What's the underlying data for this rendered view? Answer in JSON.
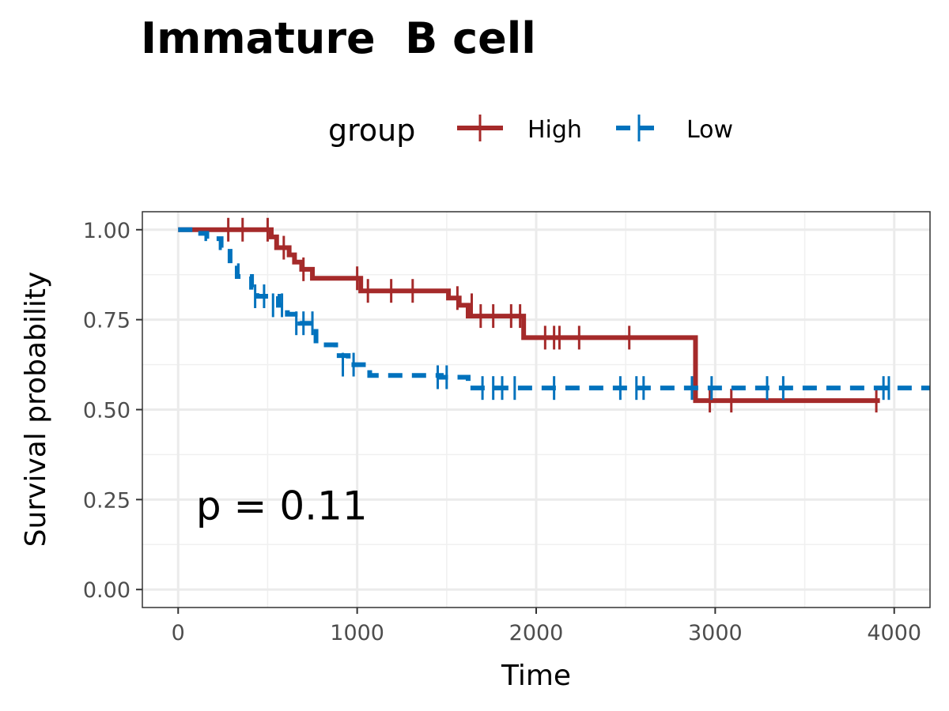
{
  "chart_data": {
    "type": "line",
    "subtype": "kaplan-meier",
    "title": "Immature  B cell",
    "legend": {
      "title": "group",
      "position": "top",
      "entries": [
        "High",
        "Low"
      ]
    },
    "xlabel": "Time",
    "ylabel": "Survival probability",
    "xlim": [
      -200,
      4200
    ],
    "ylim": [
      -0.05,
      1.05
    ],
    "x_ticks": [
      0,
      1000,
      2000,
      3000,
      4000
    ],
    "x_tick_labels": [
      "0",
      "1000",
      "2000",
      "3000",
      "4000"
    ],
    "y_ticks": [
      0.0,
      0.25,
      0.5,
      0.75,
      1.0
    ],
    "y_tick_labels": [
      "0.00",
      "0.25",
      "0.50",
      "0.75",
      "1.00"
    ],
    "grid": true,
    "annotation": "p = 0.11",
    "annotation_position": [
      100,
      0.195
    ],
    "series": [
      {
        "name": "High",
        "color": "#A52A2A",
        "dash": "solid",
        "steps": [
          [
            0,
            1.0
          ],
          [
            520,
            0.98
          ],
          [
            550,
            0.95
          ],
          [
            620,
            0.93
          ],
          [
            650,
            0.91
          ],
          [
            690,
            0.89
          ],
          [
            750,
            0.865
          ],
          [
            1020,
            0.83
          ],
          [
            1510,
            0.81
          ],
          [
            1570,
            0.79
          ],
          [
            1620,
            0.76
          ],
          [
            1930,
            0.7
          ],
          [
            2890,
            0.525
          ],
          [
            3920,
            0.525
          ]
        ],
        "censors": [
          [
            280,
            1.0
          ],
          [
            360,
            1.0
          ],
          [
            500,
            1.0
          ],
          [
            590,
            0.95
          ],
          [
            700,
            0.89
          ],
          [
            1000,
            0.865
          ],
          [
            1060,
            0.83
          ],
          [
            1190,
            0.83
          ],
          [
            1310,
            0.83
          ],
          [
            1560,
            0.81
          ],
          [
            1640,
            0.79
          ],
          [
            1690,
            0.76
          ],
          [
            1760,
            0.76
          ],
          [
            1860,
            0.76
          ],
          [
            1910,
            0.76
          ],
          [
            2050,
            0.7
          ],
          [
            2100,
            0.7
          ],
          [
            2130,
            0.7
          ],
          [
            2240,
            0.7
          ],
          [
            2520,
            0.7
          ],
          [
            2970,
            0.525
          ],
          [
            3090,
            0.525
          ],
          [
            3900,
            0.525
          ]
        ]
      },
      {
        "name": "Low",
        "color": "#0072BD",
        "dash": "dashed",
        "steps": [
          [
            0,
            1.0
          ],
          [
            100,
            0.99
          ],
          [
            160,
            0.975
          ],
          [
            240,
            0.95
          ],
          [
            290,
            0.9
          ],
          [
            330,
            0.87
          ],
          [
            410,
            0.84
          ],
          [
            440,
            0.815
          ],
          [
            560,
            0.79
          ],
          [
            610,
            0.765
          ],
          [
            680,
            0.74
          ],
          [
            770,
            0.68
          ],
          [
            880,
            0.65
          ],
          [
            950,
            0.625
          ],
          [
            1070,
            0.595
          ],
          [
            1470,
            0.59
          ],
          [
            1620,
            0.56
          ],
          [
            4200,
            0.56
          ]
        ],
        "censors": [
          [
            430,
            0.815
          ],
          [
            480,
            0.815
          ],
          [
            530,
            0.79
          ],
          [
            580,
            0.79
          ],
          [
            660,
            0.74
          ],
          [
            700,
            0.74
          ],
          [
            750,
            0.74
          ],
          [
            920,
            0.625
          ],
          [
            980,
            0.625
          ],
          [
            1450,
            0.59
          ],
          [
            1500,
            0.59
          ],
          [
            1700,
            0.56
          ],
          [
            1760,
            0.56
          ],
          [
            1810,
            0.56
          ],
          [
            1880,
            0.56
          ],
          [
            2100,
            0.56
          ],
          [
            2470,
            0.56
          ],
          [
            2560,
            0.56
          ],
          [
            2600,
            0.56
          ],
          [
            2870,
            0.56
          ],
          [
            2980,
            0.56
          ],
          [
            3290,
            0.56
          ],
          [
            3380,
            0.56
          ],
          [
            3940,
            0.56
          ],
          [
            3970,
            0.56
          ]
        ]
      }
    ]
  }
}
